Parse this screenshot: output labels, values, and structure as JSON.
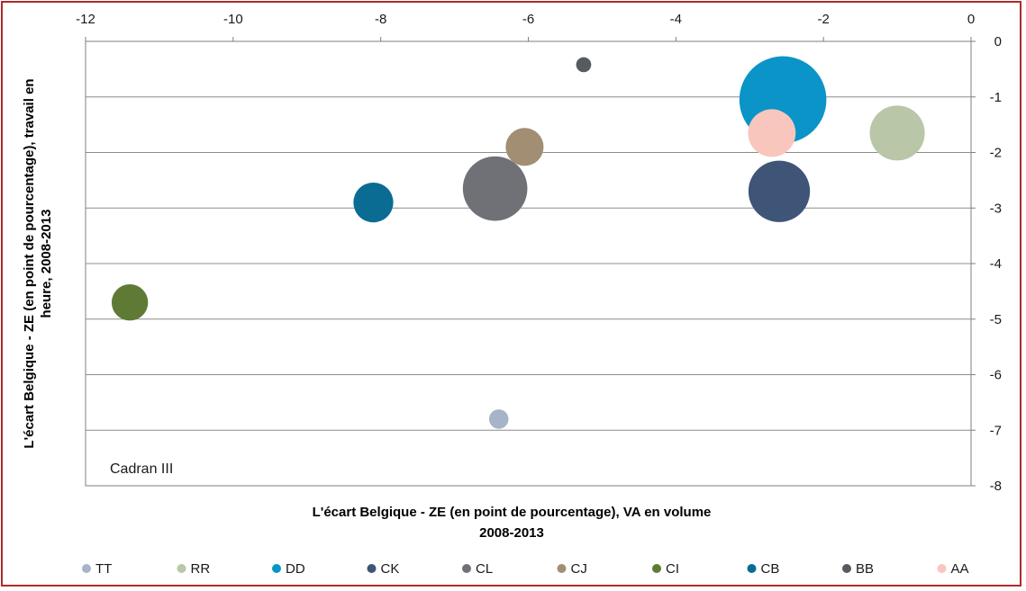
{
  "chart_data": {
    "type": "bubble",
    "xlabel_lines": [
      "L'écart Belgique - ZE (en point de pourcentage), VA en volume",
      "2008-2013"
    ],
    "ylabel_lines": [
      "L'écart Belgique - ZE (en point de pourcentage), travail en",
      "heure, 2008-2013"
    ],
    "annotation": "Cadran III",
    "xlim": [
      -12,
      0
    ],
    "ylim": [
      -8,
      0
    ],
    "x_ticks": [
      -12,
      -10,
      -8,
      -6,
      -4,
      -2,
      0
    ],
    "y_ticks": [
      0,
      -1,
      -2,
      -3,
      -4,
      -5,
      -6,
      -7,
      -8
    ],
    "x_axis_position": "top",
    "y_axis_position": "right",
    "grid": "horizontal",
    "legend_position": "bottom",
    "series": [
      {
        "name": "TT",
        "x": -6.4,
        "y": -6.8,
        "size": 1.0,
        "color": "#a7b4c8"
      },
      {
        "name": "RR",
        "x": -1.0,
        "y": -1.65,
        "size": 8.0,
        "color": "#b9c6a8"
      },
      {
        "name": "DD",
        "x": -2.55,
        "y": -1.05,
        "size": 20.0,
        "color": "#0a94c8"
      },
      {
        "name": "CK",
        "x": -2.6,
        "y": -2.7,
        "size": 10.0,
        "color": "#3e5577"
      },
      {
        "name": "CL",
        "x": -6.45,
        "y": -2.65,
        "size": 11.0,
        "color": "#6f7176"
      },
      {
        "name": "CJ",
        "x": -6.05,
        "y": -1.9,
        "size": 3.8,
        "color": "#a28e72"
      },
      {
        "name": "CI",
        "x": -11.4,
        "y": -4.7,
        "size": 3.5,
        "color": "#5f7a35"
      },
      {
        "name": "CB",
        "x": -8.1,
        "y": -2.9,
        "size": 4.2,
        "color": "#0a6c93"
      },
      {
        "name": "BB",
        "x": -5.25,
        "y": -0.42,
        "size": 0.6,
        "color": "#575b60"
      },
      {
        "name": "AA",
        "x": -2.7,
        "y": -1.65,
        "size": 6.0,
        "color": "#f9c6bd"
      }
    ]
  }
}
